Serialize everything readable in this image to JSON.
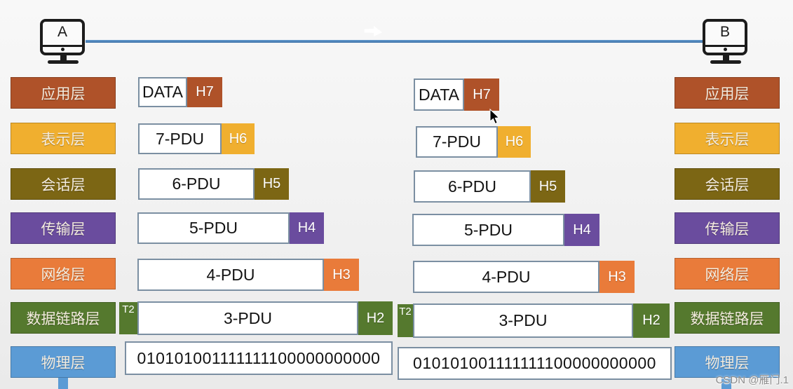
{
  "computers": {
    "left_label": "A",
    "right_label": "B"
  },
  "osi_layers": [
    {
      "name": "应用层",
      "color": "#AF5229"
    },
    {
      "name": "表示层",
      "color": "#F0AF2F"
    },
    {
      "name": "会话层",
      "color": "#7C6614"
    },
    {
      "name": "传输层",
      "color": "#6A4C9E"
    },
    {
      "name": "网络层",
      "color": "#E97B3A"
    },
    {
      "name": "数据链路层",
      "color": "#55792E"
    },
    {
      "name": "物理层",
      "color": "#5B9BD5"
    }
  ],
  "encapsulation_rows": [
    {
      "body": "DATA",
      "header": "H7",
      "header_color": "#AF5229"
    },
    {
      "body": "7-PDU",
      "header": "H6",
      "header_color": "#F0AF2F"
    },
    {
      "body": "6-PDU",
      "header": "H5",
      "header_color": "#7C6614"
    },
    {
      "body": "5-PDU",
      "header": "H4",
      "header_color": "#6A4C9E"
    },
    {
      "body": "4-PDU",
      "header": "H3",
      "header_color": "#E97B3A"
    },
    {
      "body": "3-PDU",
      "header": "H2",
      "trailer": "T2",
      "header_color": "#55792E"
    },
    {
      "body": "010101001111111100000000000"
    }
  ],
  "link_color": "#4E86C6",
  "physical_color": "#5B9BD5",
  "watermark": "CSDN @雁门.1"
}
